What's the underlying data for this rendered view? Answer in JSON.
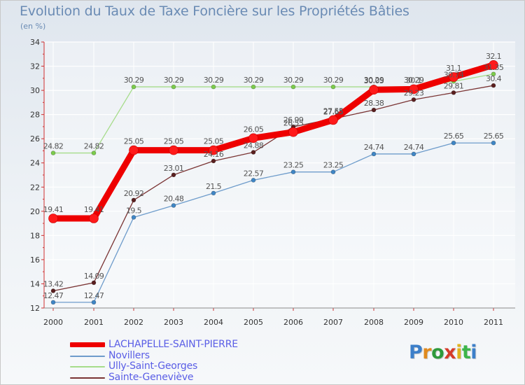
{
  "header": {
    "title": "Evolution du Taux de Taxe Foncière sur les Propriétés Bâties",
    "unit": "(en %)"
  },
  "brand": {
    "text": "Proxiti",
    "colors": [
      "#3c7fc9",
      "#e08a1e",
      "#2f9a3c",
      "#d63c2a",
      "#e0b31e",
      "#3cb54a",
      "#3c7fc9"
    ]
  },
  "chart_data": {
    "type": "line",
    "title": "Evolution du Taux de Taxe Foncière sur les Propriétés Bâties",
    "ylabel": "(en %)",
    "xlabel": "",
    "x": [
      "2000",
      "2001",
      "2002",
      "2003",
      "2004",
      "2005",
      "2006",
      "2007",
      "2008",
      "2009",
      "2010",
      "2011"
    ],
    "ylim": [
      12,
      34
    ],
    "yticks": [
      "12",
      "14",
      "16",
      "18",
      "20",
      "22",
      "24",
      "26",
      "28",
      "30",
      "32",
      "34"
    ],
    "grid": true,
    "legend": "bottom-left",
    "series": [
      {
        "name": "LACHAPELLE-SAINT-PIERRE",
        "color": "#ee0000",
        "values": [
          19.41,
          19.41,
          25.05,
          25.05,
          25.05,
          26.05,
          26.55,
          27.55,
          30.05,
          30.1,
          31.1,
          32.1
        ],
        "labels": [
          "19.41",
          "19.41",
          "25.05",
          "25.05",
          "25.05",
          "26.05",
          "26.55",
          "27.55",
          "30.05",
          "30.1",
          "31.1",
          "32.1"
        ]
      },
      {
        "name": "Novillers",
        "color": "#6e9ccb",
        "values": [
          12.47,
          12.47,
          19.5,
          20.48,
          21.5,
          22.57,
          23.25,
          23.25,
          24.74,
          24.74,
          25.65,
          25.65
        ],
        "labels": [
          "12.47",
          "12.47",
          "19.5",
          "20.48",
          "21.5",
          "22.57",
          "23.25",
          "23.25",
          "24.74",
          "24.74",
          "25.65",
          "25.65"
        ]
      },
      {
        "name": "Ully-Saint-Georges",
        "color": "#a6dc8a",
        "values": [
          24.82,
          24.82,
          30.29,
          30.29,
          30.29,
          30.29,
          30.29,
          30.29,
          30.29,
          30.29,
          30.74,
          31.35
        ],
        "labels": [
          "24.82",
          "24.82",
          "30.29",
          "30.29",
          "30.29",
          "30.29",
          "30.29",
          "30.29",
          "30.29",
          "30.29",
          "30.74",
          "31.35"
        ]
      },
      {
        "name": "Sainte-Geneviève",
        "color": "#7a3434",
        "values": [
          13.42,
          14.09,
          20.92,
          23.01,
          24.16,
          24.88,
          26.99,
          27.65,
          28.38,
          29.23,
          29.81,
          30.4
        ],
        "labels": [
          "13.42",
          "14.09",
          "20.92",
          "23.01",
          "24.16",
          "24.88",
          "26.99",
          "27.65",
          "28.38",
          "29.23",
          "29.81",
          "30.4"
        ]
      }
    ]
  }
}
